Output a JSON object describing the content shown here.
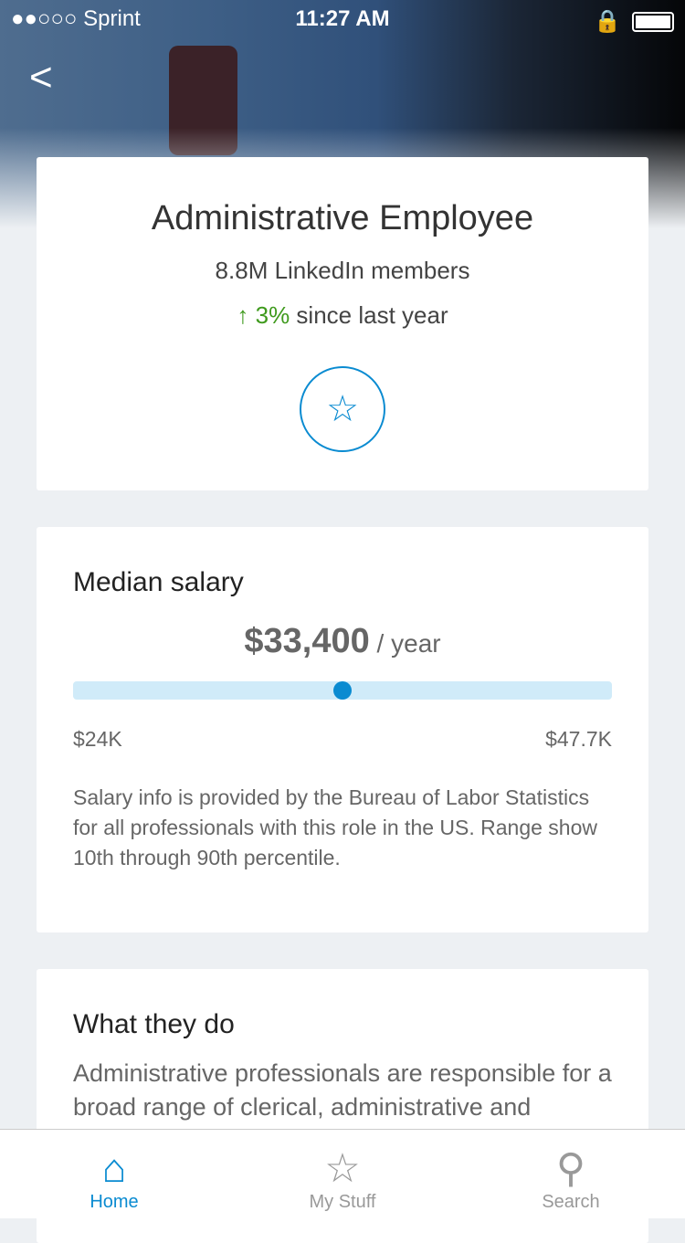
{
  "status": {
    "carrier": "●●○○○ Sprint",
    "time": "11:27 AM"
  },
  "header": {
    "back_icon": "chevron-left-icon"
  },
  "job": {
    "title": "Administrative Employee",
    "members": "8.8M LinkedIn members",
    "growth_value": "3%",
    "growth_text": " since last year",
    "growth_arrow": "↑"
  },
  "salary": {
    "heading": "Median salary",
    "value": "$33,400",
    "unit": " / year",
    "min": "$24K",
    "max": "$47.7K",
    "median_fraction": 0.5,
    "note": "Salary info is provided by the Bureau of Labor Statistics for all professionals with this role in the US. Range show 10th through 90th percentile."
  },
  "about": {
    "heading": "What they do",
    "text": "Administrative professionals are responsible for a broad range of clerical, administrative and"
  },
  "tabs": [
    {
      "label": "Home",
      "icon": "home-icon"
    },
    {
      "label": "My Stuff",
      "icon": "star-icon"
    },
    {
      "label": "Search",
      "icon": "search-icon"
    }
  ],
  "colors": {
    "accent": "#0a8bd1",
    "growth": "#3f9a1d",
    "bar": "#d0ebf9"
  }
}
